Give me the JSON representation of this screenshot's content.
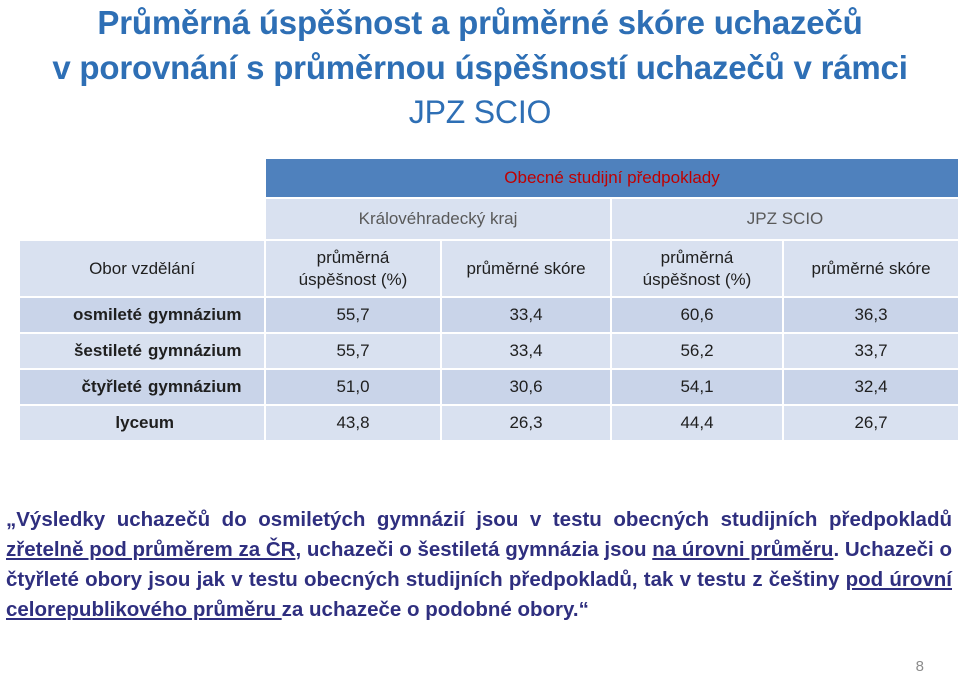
{
  "title": {
    "line1": "Průměrná úspěšnost a průměrné skóre uchazečů",
    "line2": "v porovnání s průměrnou úspěšností uchazečů v rámci",
    "line3": "JPZ SCIO"
  },
  "table": {
    "section_header": "Obecné studijní předpoklady",
    "group_left": "Královéhradecký kraj",
    "group_right": "JPZ SCIO",
    "col_field": "Obor vzdělání",
    "col_success_1": "průměrná",
    "col_success_2": "úspěšnost (%)",
    "col_score": "průměrné skóre",
    "rows": [
      {
        "part1": "osmileté",
        "part2": "gymnázium",
        "kr_uspesnost": "55,7",
        "kr_skore": "33,4",
        "scio_uspesnost": "60,6",
        "scio_skore": "36,3"
      },
      {
        "part1": "šestileté",
        "part2": "gymnázium",
        "kr_uspesnost": "55,7",
        "kr_skore": "33,4",
        "scio_uspesnost": "56,2",
        "scio_skore": "33,7"
      },
      {
        "part1": "čtyřleté",
        "part2": "gymnázium",
        "kr_uspesnost": "51,0",
        "kr_skore": "30,6",
        "scio_uspesnost": "54,1",
        "scio_skore": "32,4"
      },
      {
        "part1": "lyceum",
        "kr_uspesnost": "43,8",
        "kr_skore": "26,3",
        "scio_uspesnost": "44,4",
        "scio_skore": "26,7"
      }
    ]
  },
  "note": {
    "t1": "Výsledky uchazečů do osmiletých gymnázií jsou v testu obecných studijních předpokladů ",
    "u1": "zřetelně pod průměrem za ČR",
    "t2": ", uchazeči o šestiletá gymnázia jsou ",
    "u2": "na úrovni průměru",
    "t3": ". Uchazeči o čtyřleté obory jsou jak v testu obecných studijních předpokladů, tak v testu z češtiny ",
    "u3": "pod úrovní celorepublikového průměru ",
    "t4": "za uchazeče o podobné obory."
  },
  "page_number": "8"
}
